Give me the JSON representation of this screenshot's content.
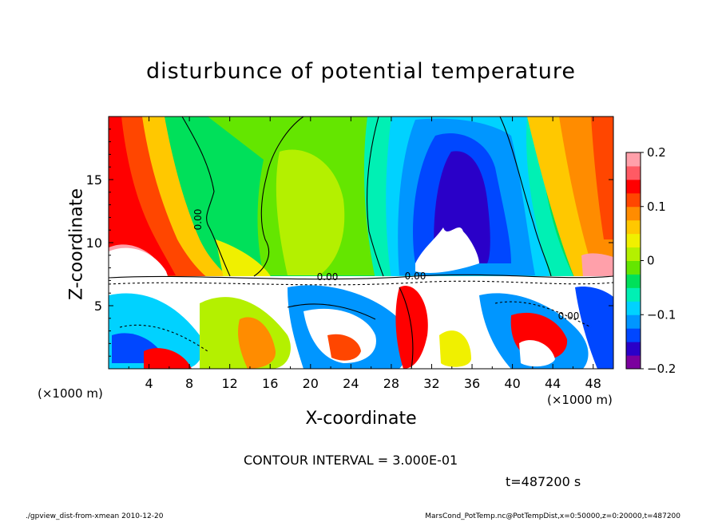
{
  "chart_data": {
    "type": "heatmap",
    "title": "disturbunce of potential temperature",
    "xlabel": "X-coordinate",
    "ylabel": "Z-coordinate",
    "x_unit_label_left": "(×1000 m)",
    "x_unit_label_right": "(×1000 m)",
    "xlim": [
      0,
      50
    ],
    "ylim": [
      0,
      20
    ],
    "x_ticks": [
      "4",
      "8",
      "12",
      "16",
      "20",
      "24",
      "28",
      "32",
      "36",
      "40",
      "44",
      "48"
    ],
    "y_ticks": [
      "5",
      "10",
      "15"
    ],
    "colorbar": {
      "range": [
        -0.2,
        0.2
      ],
      "tick_labels": [
        "0.2",
        "0.1",
        "0",
        "−0.1",
        "−0.2"
      ],
      "colors": [
        "#7b009e",
        "#2a00c8",
        "#0047ff",
        "#0096ff",
        "#00d2ff",
        "#00f0b4",
        "#00e05a",
        "#64e600",
        "#b4f000",
        "#f0f000",
        "#ffc800",
        "#ff8c00",
        "#ff4600",
        "#ff0000",
        "#ff5a64",
        "#ffa0aa"
      ]
    },
    "contour_labels": [
      "0.00",
      "0.00",
      "0.00",
      "0.00"
    ],
    "contour_interval_text": "CONTOUR INTERVAL = 3.000E-01",
    "time_text": "t=487200 s"
  },
  "footer": {
    "left": "./gpview_dist-from-xmean  2010-12-20",
    "right": "MarsCond_PotTemp.nc@PotTempDist,x=0:50000,z=0:20000,t=487200"
  }
}
